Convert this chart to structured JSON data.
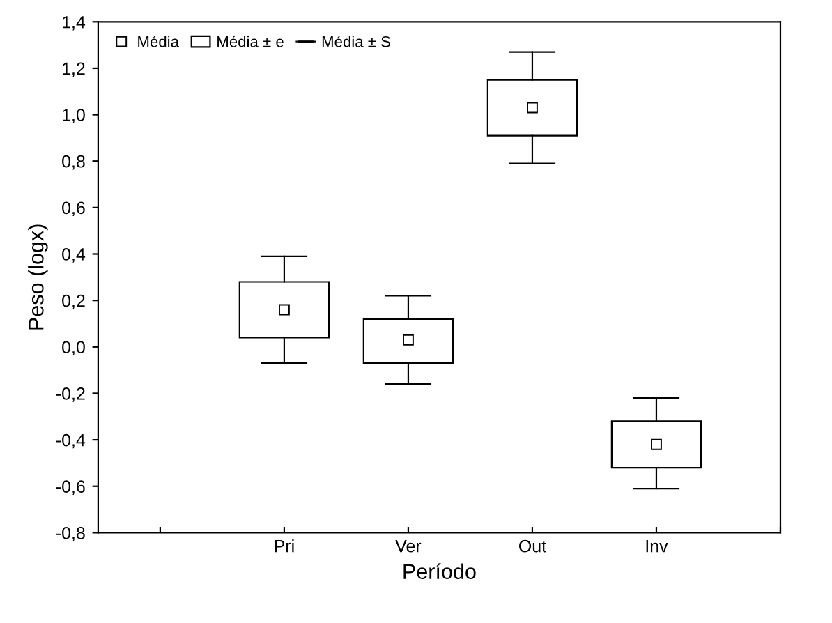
{
  "chart_data": {
    "type": "box",
    "xlabel": "Período",
    "ylabel": "Peso (logx)",
    "categories": [
      null,
      "Pri",
      "Ver",
      "Out",
      "Inv",
      null
    ],
    "boxes": [
      null,
      {
        "low": -0.07,
        "q1": 0.04,
        "median": 0.16,
        "q3": 0.28,
        "high": 0.39
      },
      {
        "low": -0.16,
        "q1": -0.07,
        "median": 0.03,
        "q3": 0.12,
        "high": 0.22
      },
      {
        "low": 0.79,
        "q1": 0.91,
        "median": 1.03,
        "q3": 1.15,
        "high": 1.27
      },
      {
        "low": -0.61,
        "q1": -0.52,
        "median": -0.42,
        "q3": -0.32,
        "high": -0.22
      },
      null
    ],
    "annotations": [
      "Média",
      "Média ± e",
      "Média ± S"
    ],
    "grid": false,
    "marker": "square",
    "ylim": [
      -0.8,
      1.4
    ],
    "yticks": [
      {
        "value": -0.8,
        "label": "-0,8"
      },
      {
        "value": -0.6,
        "label": "-0,6"
      },
      {
        "value": -0.4,
        "label": "-0,4"
      },
      {
        "value": -0.2,
        "label": "-0,2"
      },
      {
        "value": 0.0,
        "label": "0,0"
      },
      {
        "value": 0.2,
        "label": "0,2"
      },
      {
        "value": 0.4,
        "label": "0,4"
      },
      {
        "value": 0.6,
        "label": "0,6"
      },
      {
        "value": 0.8,
        "label": "0,8"
      },
      {
        "value": 1.0,
        "label": "1,0"
      },
      {
        "value": 1.2,
        "label": "1,2"
      },
      {
        "value": 1.4,
        "label": "1,4"
      }
    ]
  }
}
